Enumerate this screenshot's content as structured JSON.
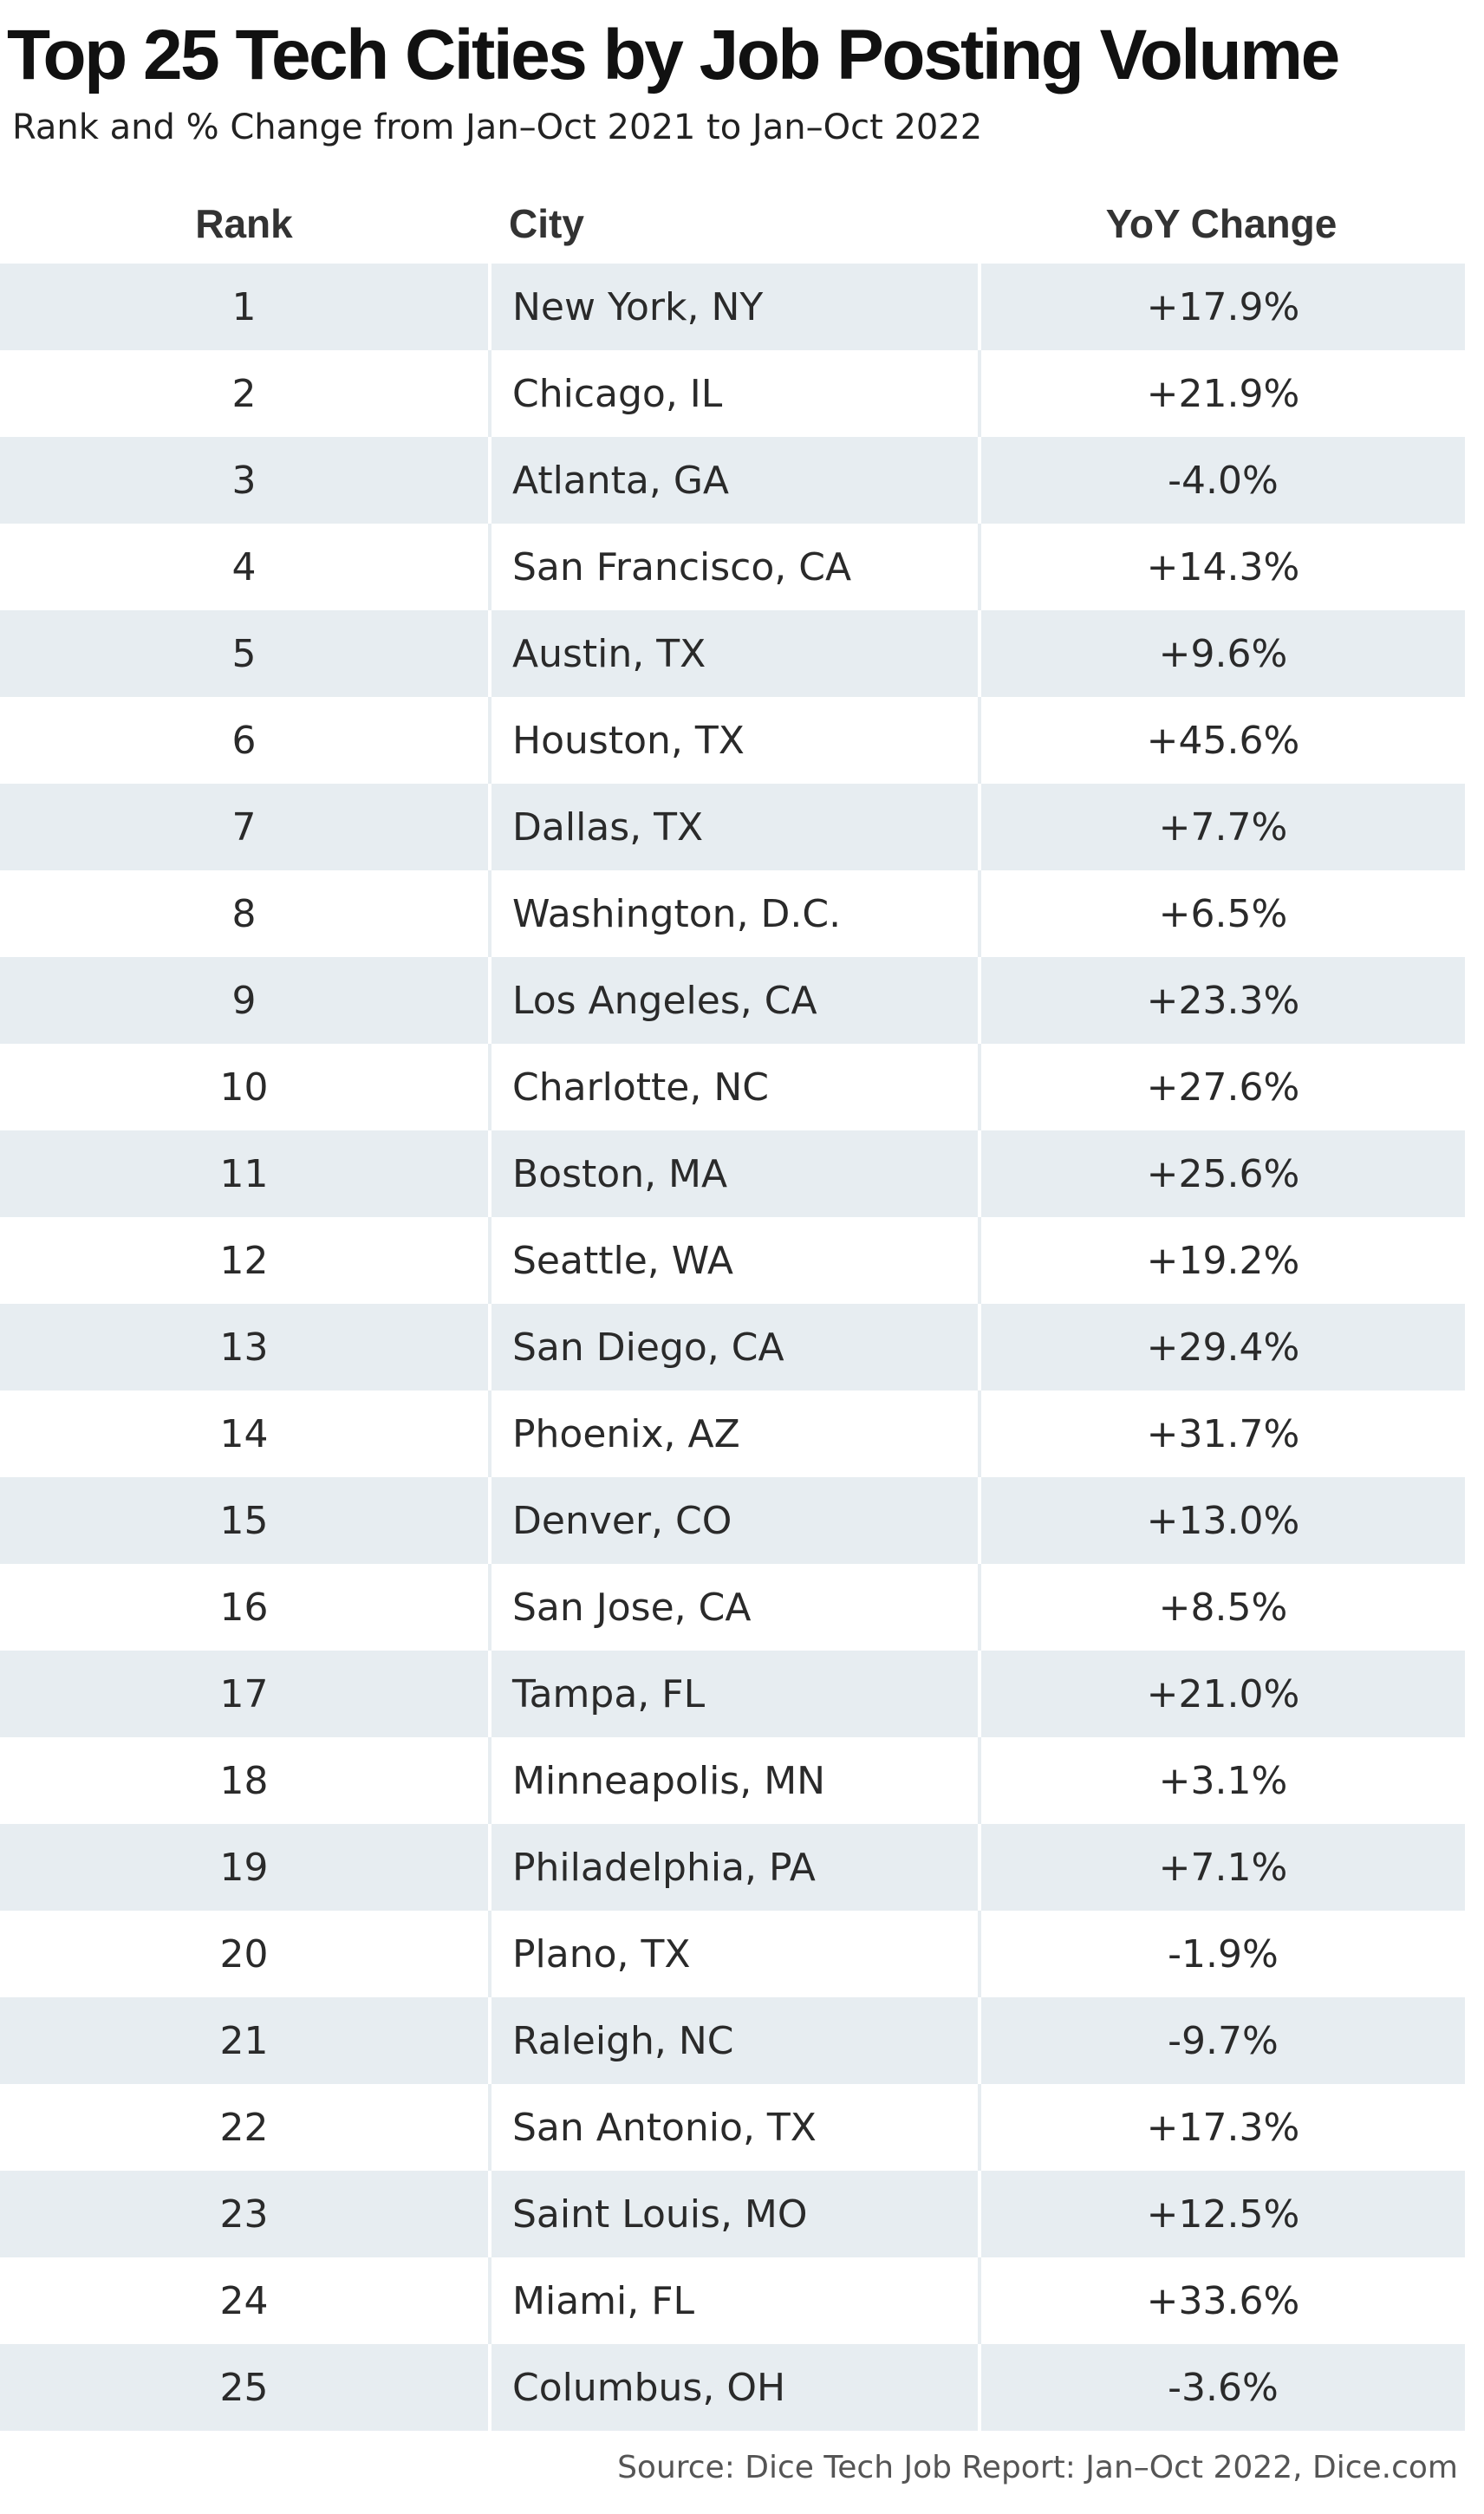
{
  "chart_data": {
    "type": "table",
    "title": "Top 25 Tech Cities by Job Posting Volume",
    "subtitle": "Rank and % Change from Jan–Oct 2021 to Jan–Oct 2022",
    "columns": [
      "Rank",
      "City",
      "YoY Change"
    ],
    "rows": [
      {
        "rank": "1",
        "city": "New York, NY",
        "change": "+17.9%"
      },
      {
        "rank": "2",
        "city": "Chicago, IL",
        "change": "+21.9%"
      },
      {
        "rank": "3",
        "city": "Atlanta, GA",
        "change": "-4.0%"
      },
      {
        "rank": "4",
        "city": "San Francisco, CA",
        "change": "+14.3%"
      },
      {
        "rank": "5",
        "city": "Austin, TX",
        "change": "+9.6%"
      },
      {
        "rank": "6",
        "city": "Houston, TX",
        "change": "+45.6%"
      },
      {
        "rank": "7",
        "city": "Dallas, TX",
        "change": "+7.7%"
      },
      {
        "rank": "8",
        "city": "Washington, D.C.",
        "change": "+6.5%"
      },
      {
        "rank": "9",
        "city": "Los Angeles, CA",
        "change": "+23.3%"
      },
      {
        "rank": "10",
        "city": "Charlotte, NC",
        "change": "+27.6%"
      },
      {
        "rank": "11",
        "city": "Boston, MA",
        "change": "+25.6%"
      },
      {
        "rank": "12",
        "city": "Seattle, WA",
        "change": "+19.2%"
      },
      {
        "rank": "13",
        "city": "San Diego, CA",
        "change": "+29.4%"
      },
      {
        "rank": "14",
        "city": "Phoenix, AZ",
        "change": "+31.7%"
      },
      {
        "rank": "15",
        "city": "Denver, CO",
        "change": "+13.0%"
      },
      {
        "rank": "16",
        "city": "San Jose, CA",
        "change": "+8.5%"
      },
      {
        "rank": "17",
        "city": "Tampa, FL",
        "change": "+21.0%"
      },
      {
        "rank": "18",
        "city": "Minneapolis, MN",
        "change": "+3.1%"
      },
      {
        "rank": "19",
        "city": "Philadelphia, PA",
        "change": "+7.1%"
      },
      {
        "rank": "20",
        "city": "Plano, TX",
        "change": "-1.9%"
      },
      {
        "rank": "21",
        "city": "Raleigh, NC",
        "change": "-9.7%"
      },
      {
        "rank": "22",
        "city": "San Antonio, TX",
        "change": "+17.3%"
      },
      {
        "rank": "23",
        "city": "Saint Louis, MO",
        "change": "+12.5%"
      },
      {
        "rank": "24",
        "city": "Miami, FL",
        "change": "+33.6%"
      },
      {
        "rank": "25",
        "city": "Columbus, OH",
        "change": "-3.6%"
      }
    ],
    "source": "Source: Dice Tech Job Report: Jan–Oct 2022, Dice.com"
  },
  "colors": {
    "row_shade": "#e7edf1",
    "text": "#2a2a2a"
  }
}
